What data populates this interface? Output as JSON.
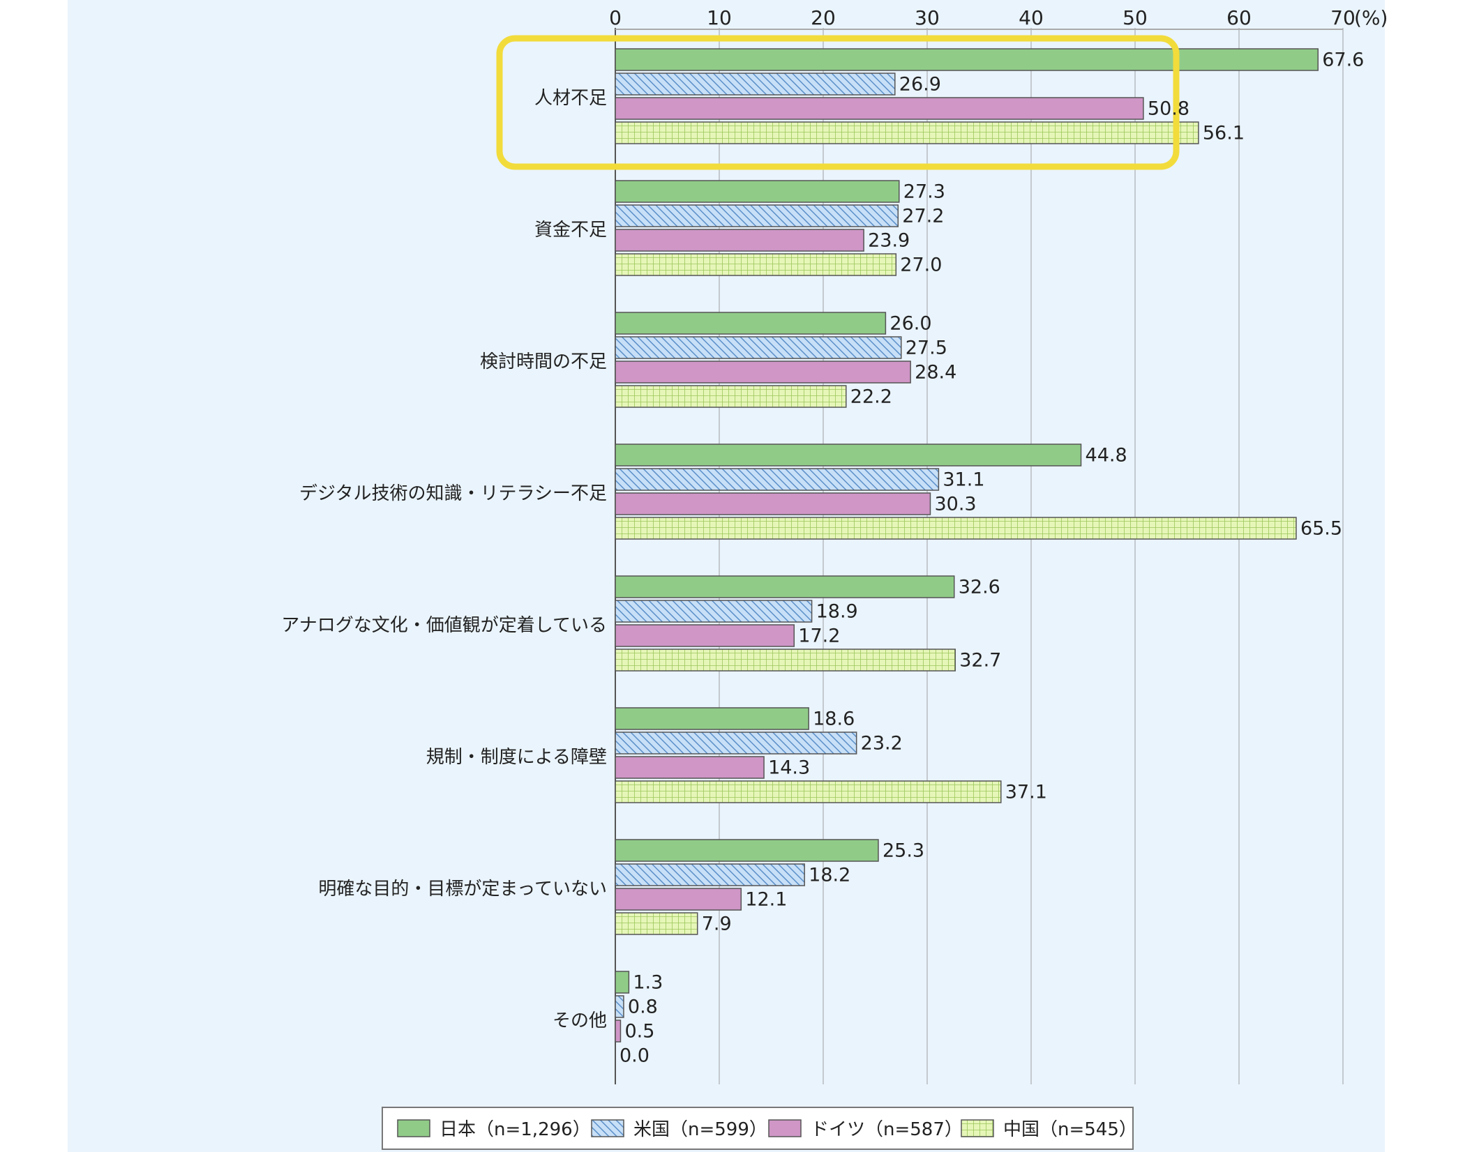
{
  "chart_data": {
    "type": "bar",
    "orientation": "horizontal",
    "unit": "(%)",
    "xlim": [
      0,
      70
    ],
    "xticks": [
      "0",
      "10",
      "20",
      "30",
      "40",
      "50",
      "60",
      "70"
    ],
    "grid": true,
    "legend_position": "bottom",
    "categories": [
      "人材不足",
      "資金不足",
      "検討時間の不足",
      "デジタル技術の知識・リテラシー不足",
      "アナログな文化・価値観が定着している",
      "規制・制度による障壁",
      "明確な目的・目標が定まっていない",
      "その他"
    ],
    "series": [
      {
        "name": "日本（n=1,296）",
        "color": "#90cc88",
        "pattern": "solid",
        "values": [
          67.6,
          27.3,
          26.0,
          44.8,
          32.6,
          18.6,
          25.3,
          1.3
        ],
        "labels": [
          "67.6",
          "27.3",
          "26.0",
          "44.8",
          "32.6",
          "18.6",
          "25.3",
          "1.3"
        ]
      },
      {
        "name": "米国（n=599）",
        "color": "#a9cdef",
        "pattern": "diagonal",
        "values": [
          26.9,
          27.2,
          27.5,
          31.1,
          18.9,
          23.2,
          18.2,
          0.8
        ],
        "labels": [
          "26.9",
          "27.2",
          "27.5",
          "31.1",
          "18.9",
          "23.2",
          "18.2",
          "0.8"
        ]
      },
      {
        "name": "ドイツ（n=587）",
        "color": "#cf96c6",
        "pattern": "solid",
        "values": [
          50.8,
          23.9,
          28.4,
          30.3,
          17.2,
          14.3,
          12.1,
          0.5
        ],
        "labels": [
          "50.8",
          "23.9",
          "28.4",
          "30.3",
          "17.2",
          "14.3",
          "12.1",
          "0.5"
        ]
      },
      {
        "name": "中国（n=545）",
        "color": "#d8ef9c",
        "pattern": "grid",
        "values": [
          56.1,
          27.0,
          22.2,
          65.5,
          32.7,
          37.1,
          7.9,
          0.0
        ],
        "labels": [
          "56.1",
          "27.0",
          "22.2",
          "65.5",
          "32.7",
          "37.1",
          "7.9",
          "0.0"
        ]
      }
    ],
    "highlight": {
      "category": "人材不足",
      "color": "#f2dc3c"
    }
  }
}
